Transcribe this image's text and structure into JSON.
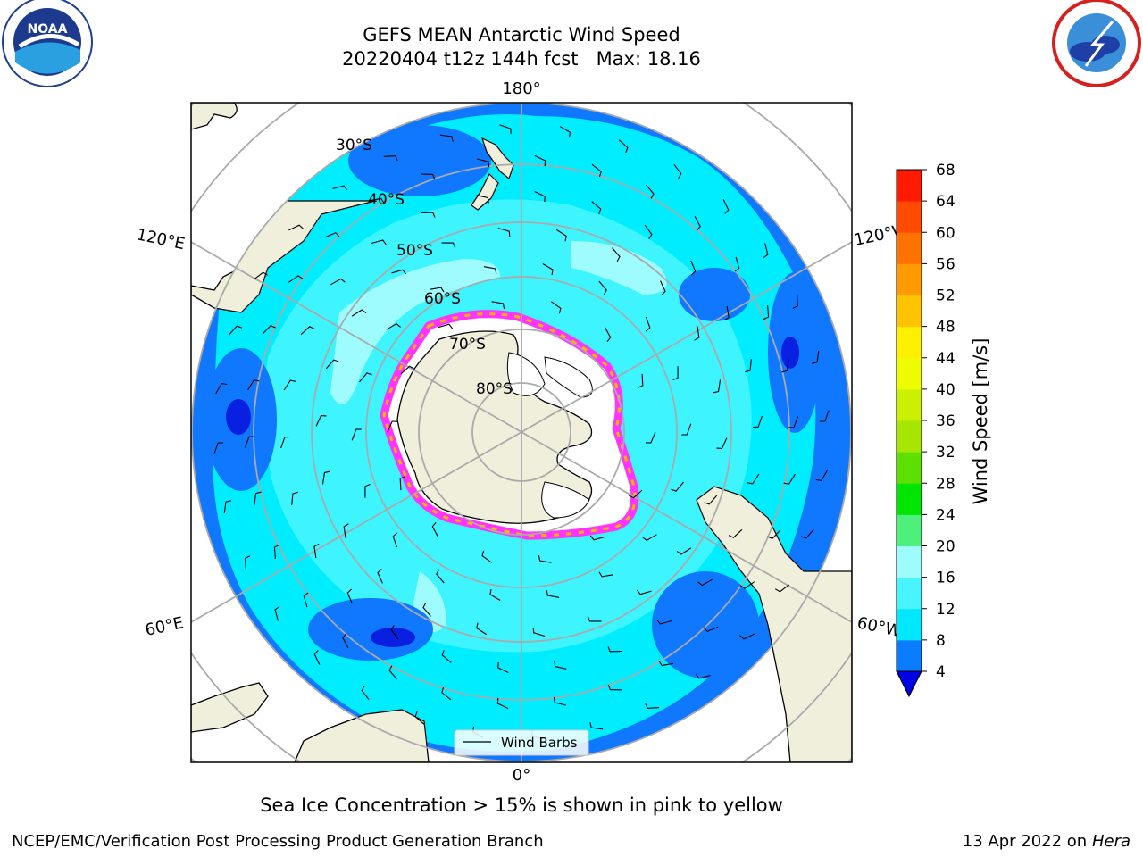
{
  "title": "GEFS MEAN Antarctic Wind Speed",
  "subtitle": "20220404 t12z 144h fcst   Max: 18.16",
  "logos": {
    "left": "noaa-logo",
    "left_text": "NOAA",
    "right": "nws-logo"
  },
  "map": {
    "projection": "south-polar-stereographic",
    "lon_labels": [
      "180°",
      "120°E",
      "120°W",
      "60°E",
      "60°W",
      "0°"
    ],
    "lat_labels": [
      "30°S",
      "40°S",
      "50°S",
      "60°S",
      "70°S",
      "80°S"
    ],
    "legend_label": "Wind Barbs"
  },
  "colorbar": {
    "label": "Wind Speed [m/s]",
    "ticks": [
      "4",
      "8",
      "12",
      "16",
      "20",
      "24",
      "28",
      "32",
      "36",
      "40",
      "44",
      "48",
      "52",
      "56",
      "60",
      "64",
      "68"
    ],
    "colors": [
      "#0a7cff",
      "#00e8ff",
      "#48f4ff",
      "#9efcff",
      "#4cf07a",
      "#00e600",
      "#5de000",
      "#a6e600",
      "#cbf000",
      "#eefc00",
      "#fff000",
      "#ffc400",
      "#ff9a00",
      "#ff7200",
      "#ff4a00",
      "#ff1a00"
    ],
    "under_color": "#0000e6"
  },
  "caption": "Sea Ice Concentration > 15% is shown in pink to yellow",
  "footer": {
    "left": "NCEP/EMC/Verification Post Processing Product Generation Branch",
    "right_prefix": "13 Apr 2022 on ",
    "right_em": "Hera"
  }
}
